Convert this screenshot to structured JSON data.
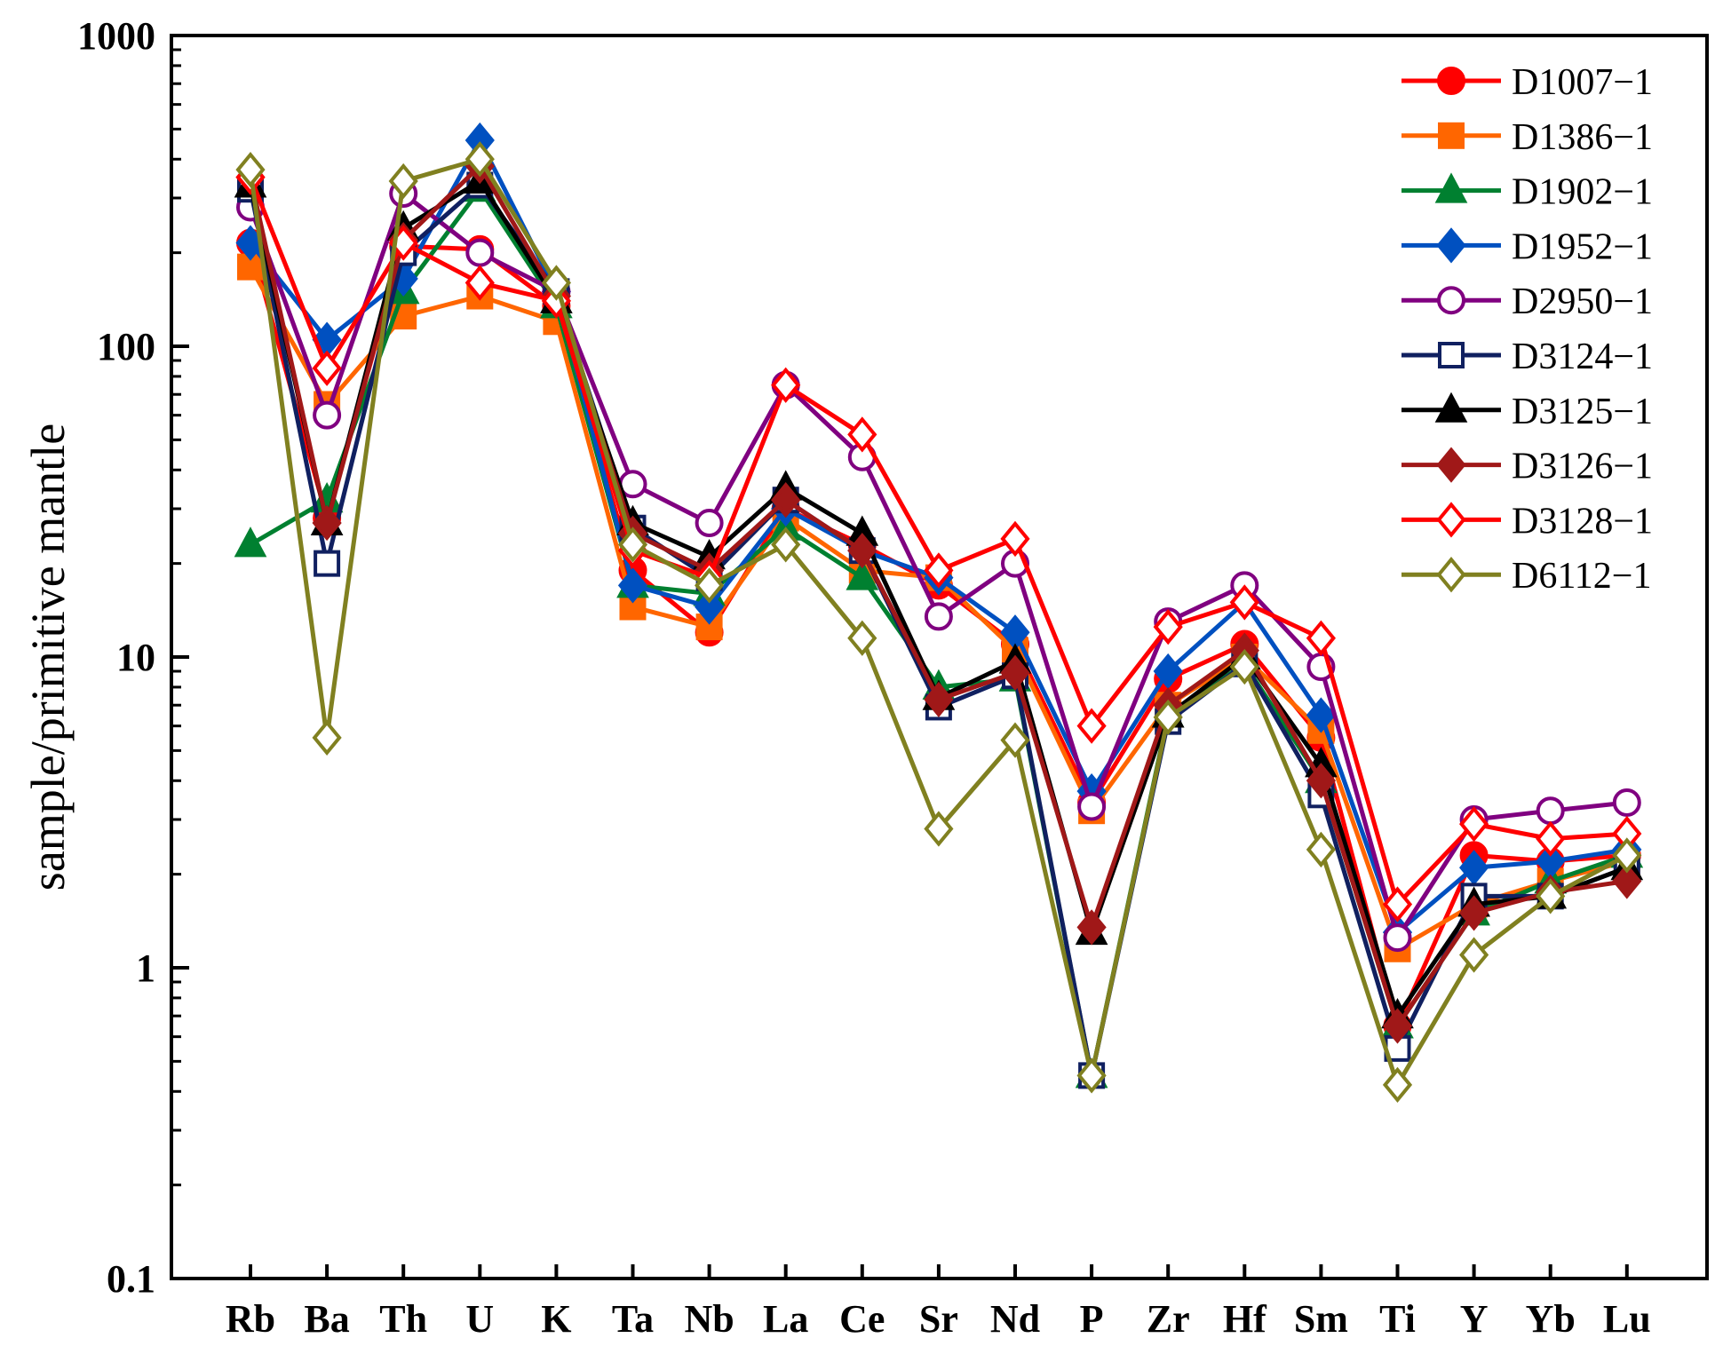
{
  "chart_data": {
    "type": "line",
    "title": "",
    "xlabel": "",
    "ylabel": "sample/primitive mantle",
    "yscale": "log",
    "ylim": [
      0.1,
      1000
    ],
    "y_ticks": [
      "0.1",
      "1",
      "10",
      "100",
      "1000"
    ],
    "grid": false,
    "legend_position": "top-right",
    "categories": [
      "Rb",
      "Ba",
      "Th",
      "U",
      "K",
      "Ta",
      "Nb",
      "La",
      "Ce",
      "Sr",
      "Nd",
      "P",
      "Zr",
      "Hf",
      "Sm",
      "Ti",
      "Y",
      "Yb",
      "Lu"
    ],
    "series": [
      {
        "name": "D1007−1",
        "color": "#ff0000",
        "marker": "circle",
        "filled": true,
        "values": [
          215,
          28,
          210,
          205,
          135,
          19,
          12,
          30,
          23,
          17,
          11,
          3.4,
          8.5,
          11,
          5.5,
          0.65,
          2.3,
          2.2,
          2.3
        ]
      },
      {
        "name": "D1386−1",
        "color": "#ff6600",
        "marker": "square",
        "filled": true,
        "values": [
          180,
          65,
          125,
          145,
          120,
          14.5,
          12.5,
          28,
          19,
          18,
          10.5,
          3.2,
          7,
          10,
          5.8,
          1.15,
          1.6,
          1.9,
          2.2
        ]
      },
      {
        "name": "D1902−1",
        "color": "#008030",
        "marker": "triangle",
        "filled": true,
        "values": [
          23,
          32,
          150,
          320,
          135,
          17,
          16,
          26,
          18,
          8,
          8.5,
          0.45,
          6.5,
          9.5,
          4,
          0.65,
          1.5,
          1.9,
          2.3
        ]
      },
      {
        "name": "D1952−1",
        "color": "#0050c0",
        "marker": "diamond",
        "filled": true,
        "values": [
          215,
          105,
          165,
          460,
          150,
          17,
          14.5,
          30,
          22,
          18,
          12,
          3.7,
          9,
          15,
          6.5,
          1.3,
          2.1,
          2.2,
          2.4
        ]
      },
      {
        "name": "D2950−1",
        "color": "#800080",
        "marker": "circle",
        "filled": false,
        "values": [
          280,
          60,
          310,
          200,
          150,
          36,
          27,
          75,
          44,
          13.5,
          20,
          3.3,
          13,
          17,
          9.3,
          1.25,
          3,
          3.2,
          3.4
        ]
      },
      {
        "name": "D3124−1",
        "color": "#102060",
        "marker": "square",
        "filled": false,
        "values": [
          320,
          20,
          200,
          330,
          150,
          26,
          18,
          32,
          22,
          6.9,
          8.7,
          0.45,
          6.2,
          9.5,
          3.6,
          0.55,
          1.7,
          1.7,
          2.1
        ]
      },
      {
        "name": "D3125−1",
        "color": "#000000",
        "marker": "triangle",
        "filled": true,
        "values": [
          330,
          27,
          240,
          340,
          140,
          27,
          21,
          35,
          25,
          7.4,
          9.7,
          1.3,
          6.5,
          10,
          4.5,
          0.7,
          1.6,
          1.7,
          2.1
        ]
      },
      {
        "name": "D3126−1",
        "color": "#a01818",
        "marker": "diamond",
        "filled": true,
        "values": [
          350,
          27,
          220,
          380,
          145,
          25,
          19,
          32,
          22,
          7.3,
          8.9,
          1.35,
          7,
          10.5,
          4,
          0.65,
          1.5,
          1.75,
          1.9
        ]
      },
      {
        "name": "D3128−1",
        "color": "#ff0000",
        "marker": "diamond",
        "filled": false,
        "values": [
          350,
          85,
          215,
          160,
          140,
          22,
          18,
          75,
          52,
          19,
          24,
          6,
          12.5,
          15,
          11.5,
          1.6,
          2.9,
          2.6,
          2.7
        ]
      },
      {
        "name": "D6112−1",
        "color": "#808020",
        "marker": "diamond",
        "filled": false,
        "values": [
          370,
          5.5,
          340,
          400,
          160,
          23,
          17,
          23,
          11.5,
          2.8,
          5.4,
          0.45,
          6.4,
          9.3,
          2.4,
          0.42,
          1.1,
          1.7,
          2.3
        ]
      }
    ]
  }
}
